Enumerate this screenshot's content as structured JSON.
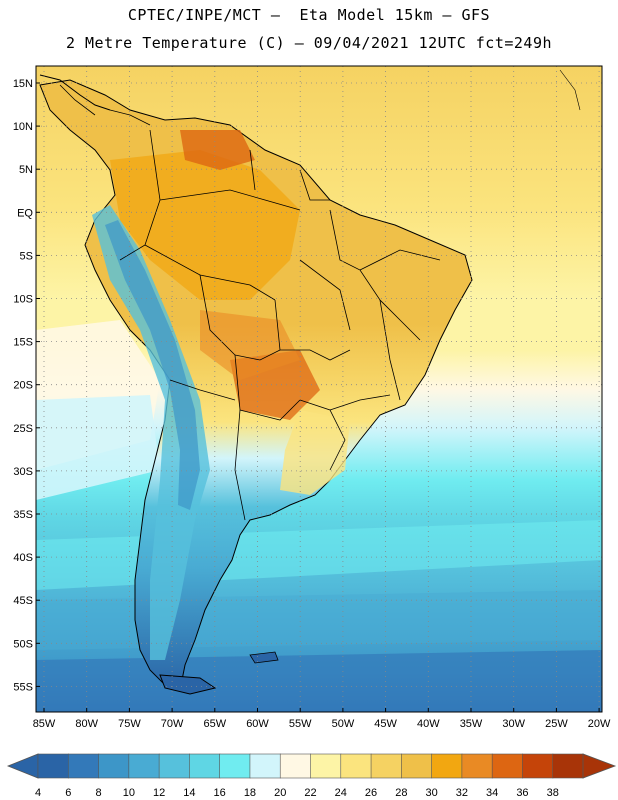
{
  "header": {
    "line1": "CPTEC/INPE/MCT –  Eta Model 15km – GFS",
    "line2": "2 Metre Temperature (C) – 09/04/2021 12UTC fct=249h"
  },
  "map": {
    "lat_labels": [
      "15N",
      "10N",
      "5N",
      "EQ",
      "5S",
      "10S",
      "15S",
      "20S",
      "25S",
      "30S",
      "35S",
      "40S",
      "45S",
      "50S",
      "55S"
    ],
    "lon_labels": [
      "85W",
      "80W",
      "75W",
      "70W",
      "65W",
      "60W",
      "55W",
      "50W",
      "45W",
      "40W",
      "35W",
      "30W",
      "25W",
      "20W"
    ]
  },
  "colorbar": {
    "labels": [
      "4",
      "6",
      "8",
      "10",
      "12",
      "14",
      "16",
      "18",
      "20",
      "22",
      "24",
      "26",
      "28",
      "30",
      "32",
      "34",
      "36",
      "38"
    ],
    "colors": [
      "#2a64a6",
      "#3379b9",
      "#3d96c8",
      "#49abd3",
      "#56c1dc",
      "#5fd6e4",
      "#70ecf0",
      "#d2f5fb",
      "#fff8e4",
      "#fdf4a6",
      "#fbe47e",
      "#f5d262",
      "#efc049",
      "#f2a711",
      "#e98a24",
      "#dd6612",
      "#c54409",
      "#a83408"
    ],
    "under_color": "#2a64a6",
    "over_color": "#a83408"
  }
}
